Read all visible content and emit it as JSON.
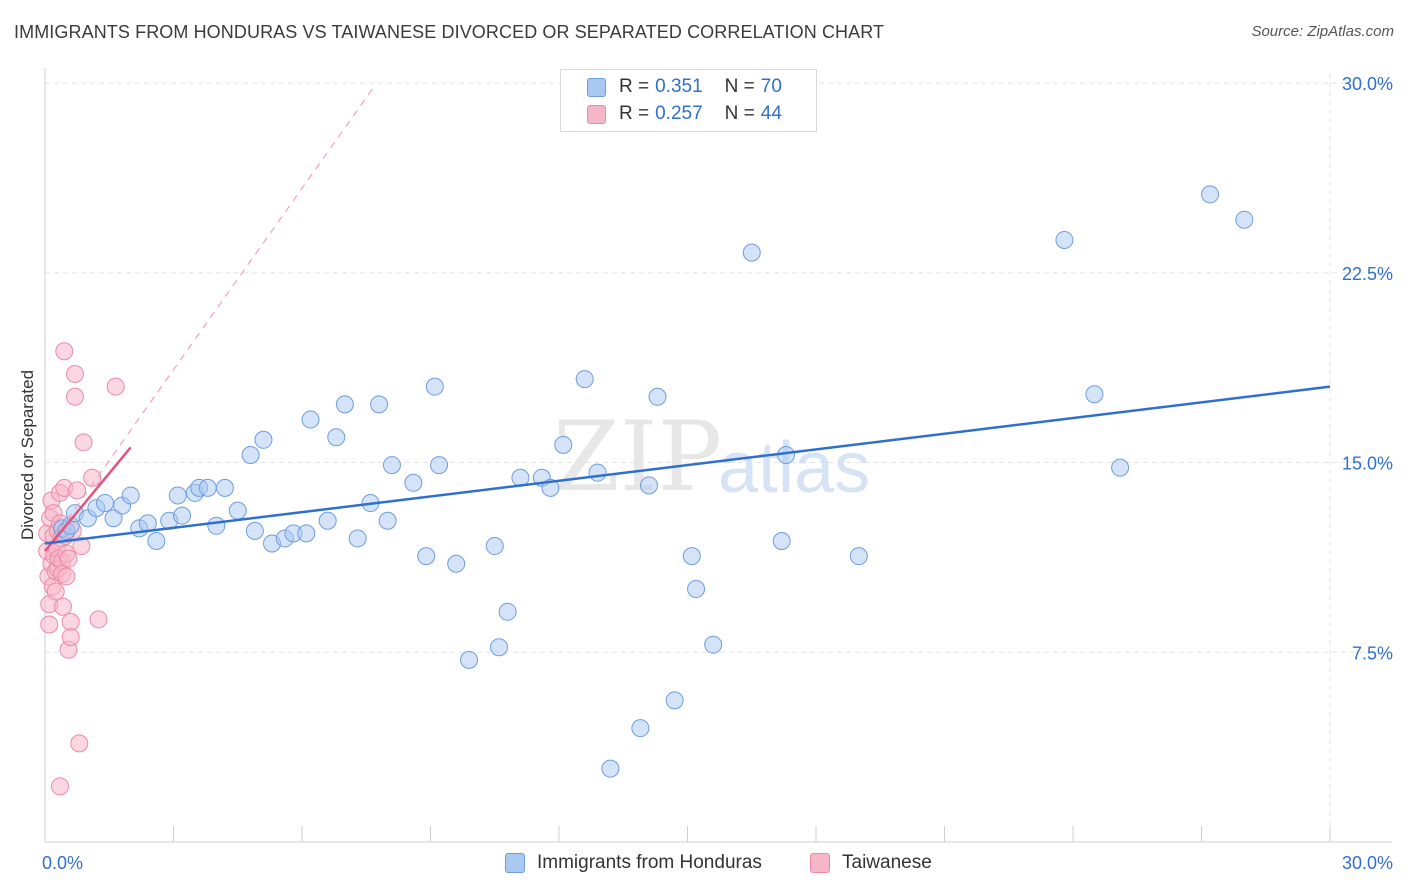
{
  "header": {
    "title": "IMMIGRANTS FROM HONDURAS VS TAIWANESE DIVORCED OR SEPARATED CORRELATION CHART",
    "source": "Source: ZipAtlas.com"
  },
  "legend": {
    "rows": [
      {
        "r_label": "R =",
        "r_value": "0.351",
        "n_label": "N =",
        "n_value": "70"
      },
      {
        "r_label": "R =",
        "r_value": "0.257",
        "n_label": "N =",
        "n_value": "44"
      }
    ]
  },
  "watermark": {
    "zip": "ZIP",
    "atlas": "atlas"
  },
  "chart_data": {
    "type": "scatter",
    "title": "IMMIGRANTS FROM HONDURAS VS TAIWANESE DIVORCED OR SEPARATED CORRELATION CHART",
    "xlabel": "",
    "ylabel": "Divorced or Separated",
    "xlim": [
      0,
      30
    ],
    "ylim": [
      0,
      30.4
    ],
    "x_tick_labels": [
      "0.0%",
      "30.0%"
    ],
    "y_ticks": [
      7.5,
      15.0,
      22.5,
      30.0
    ],
    "y_tick_labels": [
      "7.5%",
      "15.0%",
      "22.5%",
      "30.0%"
    ],
    "grid": true,
    "colors": {
      "honduras_fill": "#a9c8f2",
      "honduras_stroke": "#6d9ee0",
      "honduras_line": "#2f6fd0",
      "taiwanese_fill": "#f7b6c8",
      "taiwanese_stroke": "#ec8aa8",
      "taiwanese_line": "#e0557f",
      "axis_text": "#2f6fd0",
      "grid": "#e3e3e3"
    },
    "series": [
      {
        "name": "Immigrants from Honduras",
        "color": "#a9c8f2",
        "trend": {
          "x": [
            0,
            30
          ],
          "y": [
            11.8,
            18.0
          ],
          "style": "solid"
        },
        "points": [
          [
            0.4,
            12.4
          ],
          [
            0.5,
            12.3
          ],
          [
            0.6,
            12.5
          ],
          [
            0.7,
            13.0
          ],
          [
            1.0,
            12.8
          ],
          [
            1.2,
            13.2
          ],
          [
            1.4,
            13.4
          ],
          [
            1.6,
            12.8
          ],
          [
            1.8,
            13.3
          ],
          [
            2.0,
            13.7
          ],
          [
            2.2,
            12.4
          ],
          [
            2.4,
            12.6
          ],
          [
            2.6,
            11.9
          ],
          [
            2.9,
            12.7
          ],
          [
            3.1,
            13.7
          ],
          [
            3.2,
            12.9
          ],
          [
            3.5,
            13.8
          ],
          [
            3.6,
            14.0
          ],
          [
            3.8,
            14.0
          ],
          [
            4.0,
            12.5
          ],
          [
            4.2,
            14.0
          ],
          [
            4.5,
            13.1
          ],
          [
            4.9,
            12.3
          ],
          [
            4.8,
            15.3
          ],
          [
            5.1,
            15.9
          ],
          [
            5.3,
            11.8
          ],
          [
            5.6,
            12.0
          ],
          [
            5.8,
            12.2
          ],
          [
            6.1,
            12.2
          ],
          [
            6.2,
            16.7
          ],
          [
            6.6,
            12.7
          ],
          [
            6.8,
            16.0
          ],
          [
            7.0,
            17.3
          ],
          [
            7.3,
            12.0
          ],
          [
            7.6,
            13.4
          ],
          [
            7.8,
            17.3
          ],
          [
            8.0,
            12.7
          ],
          [
            8.1,
            14.9
          ],
          [
            8.6,
            14.2
          ],
          [
            8.9,
            11.3
          ],
          [
            9.1,
            18.0
          ],
          [
            9.2,
            14.9
          ],
          [
            9.6,
            11.0
          ],
          [
            9.9,
            7.2
          ],
          [
            10.5,
            11.7
          ],
          [
            10.6,
            7.7
          ],
          [
            10.8,
            9.1
          ],
          [
            11.1,
            14.4
          ],
          [
            11.6,
            14.4
          ],
          [
            11.8,
            14.0
          ],
          [
            12.1,
            15.7
          ],
          [
            12.6,
            18.3
          ],
          [
            12.9,
            14.6
          ],
          [
            13.2,
            2.9
          ],
          [
            13.9,
            4.5
          ],
          [
            14.1,
            14.1
          ],
          [
            14.3,
            17.6
          ],
          [
            14.7,
            5.6
          ],
          [
            15.1,
            11.3
          ],
          [
            15.2,
            10.0
          ],
          [
            15.6,
            7.8
          ],
          [
            16.5,
            23.3
          ],
          [
            17.2,
            11.9
          ],
          [
            17.3,
            15.3
          ],
          [
            19.0,
            11.3
          ],
          [
            23.8,
            23.8
          ],
          [
            24.5,
            17.7
          ],
          [
            25.1,
            14.8
          ],
          [
            27.2,
            25.6
          ],
          [
            28.0,
            24.6
          ]
        ]
      },
      {
        "name": "Taiwanese",
        "color": "#f7b6c8",
        "trend": {
          "x": [
            0,
            2.0
          ],
          "y": [
            11.5,
            15.6
          ],
          "style": "solid",
          "extension": {
            "x": [
              0,
              7.7
            ],
            "y": [
              11.5,
              29.9
            ],
            "style": "dashed"
          }
        },
        "points": [
          [
            0.05,
            12.2
          ],
          [
            0.05,
            11.5
          ],
          [
            0.08,
            10.5
          ],
          [
            0.1,
            9.4
          ],
          [
            0.1,
            8.6
          ],
          [
            0.12,
            12.8
          ],
          [
            0.15,
            13.5
          ],
          [
            0.15,
            11.0
          ],
          [
            0.18,
            10.1
          ],
          [
            0.2,
            13.0
          ],
          [
            0.2,
            12.1
          ],
          [
            0.22,
            11.3
          ],
          [
            0.25,
            10.7
          ],
          [
            0.25,
            9.9
          ],
          [
            0.28,
            11.6
          ],
          [
            0.3,
            12.3
          ],
          [
            0.3,
            10.8
          ],
          [
            0.32,
            11.2
          ],
          [
            0.35,
            13.8
          ],
          [
            0.35,
            12.6
          ],
          [
            0.38,
            12.0
          ],
          [
            0.4,
            11.1
          ],
          [
            0.4,
            10.6
          ],
          [
            0.42,
            9.3
          ],
          [
            0.45,
            19.4
          ],
          [
            0.45,
            14.0
          ],
          [
            0.48,
            12.1
          ],
          [
            0.5,
            11.4
          ],
          [
            0.5,
            10.5
          ],
          [
            0.55,
            11.2
          ],
          [
            0.55,
            7.6
          ],
          [
            0.6,
            8.7
          ],
          [
            0.6,
            8.1
          ],
          [
            0.35,
            2.2
          ],
          [
            0.65,
            12.3
          ],
          [
            0.7,
            18.5
          ],
          [
            0.7,
            17.6
          ],
          [
            0.75,
            13.9
          ],
          [
            0.8,
            3.9
          ],
          [
            0.85,
            11.7
          ],
          [
            0.9,
            15.8
          ],
          [
            1.1,
            14.4
          ],
          [
            1.25,
            8.8
          ],
          [
            1.65,
            18.0
          ]
        ]
      }
    ]
  },
  "bottom_legend": {
    "items": [
      {
        "label": "Immigrants from Honduras"
      },
      {
        "label": "Taiwanese"
      }
    ]
  }
}
